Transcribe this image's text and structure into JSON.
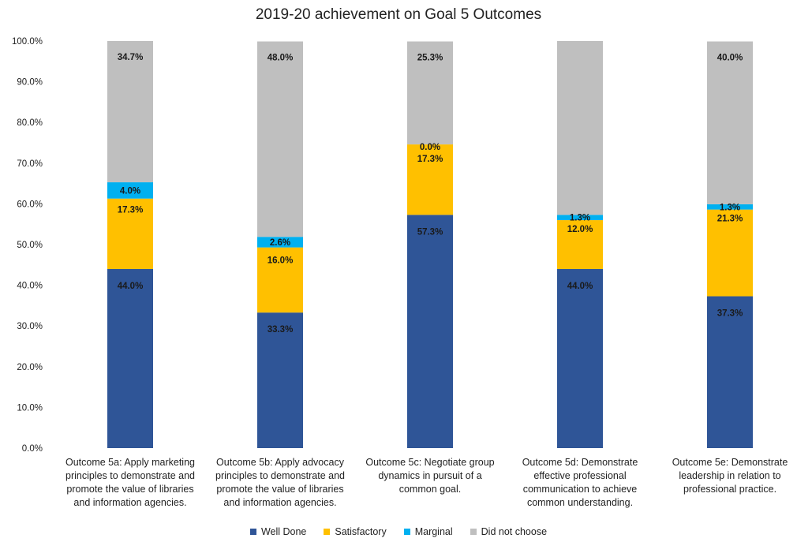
{
  "chart_data": {
    "type": "bar",
    "stacked": true,
    "title": "2019-20 achievement on Goal 5 Outcomes",
    "xlabel": "",
    "ylabel": "",
    "ylim": [
      0,
      100
    ],
    "y_ticks": [
      "0.0%",
      "10.0%",
      "20.0%",
      "30.0%",
      "40.0%",
      "50.0%",
      "60.0%",
      "70.0%",
      "80.0%",
      "90.0%",
      "100.0%"
    ],
    "categories": [
      "Outcome 5a: Apply marketing principles to demonstrate and promote the value of libraries and information agencies.",
      "Outcome 5b: Apply advocacy principles to demonstrate and promote the value of libraries and information agencies.",
      "Outcome 5c: Negotiate group dynamics in pursuit of a common goal.",
      "Outcome 5d: Demonstrate effective professional communication to achieve common understanding.",
      "Outcome 5e: Demonstrate leadership in relation to professional practice."
    ],
    "category_lines": [
      [
        "Outcome 5a: Apply marketing",
        "principles to demonstrate and",
        "promote the value of libraries",
        "and information agencies."
      ],
      [
        "Outcome 5b: Apply advocacy",
        "principles to demonstrate and",
        "promote the value of libraries",
        "and information agencies."
      ],
      [
        "Outcome 5c: Negotiate group",
        "dynamics in pursuit of a",
        "common goal."
      ],
      [
        "Outcome 5d: Demonstrate",
        "effective professional",
        "communication to achieve",
        "common understanding."
      ],
      [
        "Outcome 5e: Demonstrate",
        "leadership in relation to",
        "professional practice."
      ]
    ],
    "series": [
      {
        "name": "Well Done",
        "color": "#2f5597",
        "values": [
          44.0,
          33.3,
          57.3,
          44.0,
          37.3
        ],
        "labels": [
          "44.0%",
          "33.3%",
          "57.3%",
          "44.0%",
          "37.3%"
        ]
      },
      {
        "name": "Satisfactory",
        "color": "#ffc000",
        "values": [
          17.3,
          16.0,
          17.3,
          12.0,
          21.3
        ],
        "labels": [
          "17.3%",
          "16.0%",
          "17.3%",
          "12.0%",
          "21.3%"
        ]
      },
      {
        "name": "Marginal",
        "color": "#00b0f0",
        "values": [
          4.0,
          2.6,
          0.0,
          1.3,
          1.3
        ],
        "labels": [
          "4.0%",
          "2.6%",
          "0.0%",
          "1.3%",
          "1.3%"
        ]
      },
      {
        "name": "Did not choose",
        "color": "#bfbfbf",
        "values": [
          34.7,
          48.0,
          25.3,
          42.7,
          40.0
        ],
        "labels": [
          "34.7%",
          "48.0%",
          "25.3%",
          "",
          "40.0%"
        ]
      }
    ],
    "grid": false,
    "legend_position": "bottom"
  }
}
